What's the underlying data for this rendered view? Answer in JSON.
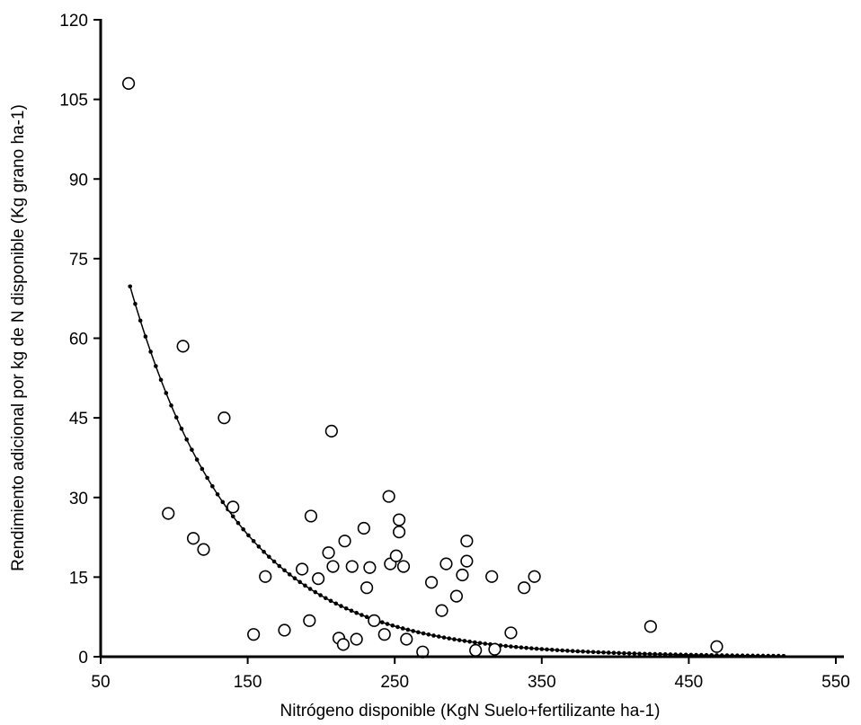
{
  "chart_data": {
    "type": "scatter",
    "title": "",
    "xlabel": "Nitrógeno disponible (KgN Suelo+fertilizante ha-1)",
    "ylabel": "Rendimiento adicional por kg de N disponible (Kg grano ha-1)",
    "xlim": [
      50,
      550
    ],
    "ylim": [
      0,
      120
    ],
    "xticks": [
      50,
      150,
      250,
      350,
      450,
      550
    ],
    "yticks": [
      0,
      15,
      30,
      45,
      60,
      75,
      90,
      105,
      120
    ],
    "grid": false,
    "legend": "none",
    "series": [
      {
        "kind": "scatter",
        "marker": "open-circle",
        "points": [
          [
            69,
            108
          ],
          [
            106,
            58.5
          ],
          [
            134,
            45
          ],
          [
            207,
            42.5
          ],
          [
            96,
            27
          ],
          [
            140,
            28.2
          ],
          [
            113,
            22.3
          ],
          [
            120,
            20.2
          ],
          [
            193,
            26.5
          ],
          [
            162,
            15.1
          ],
          [
            154,
            4.2
          ],
          [
            175,
            5
          ],
          [
            187,
            16.5
          ],
          [
            192,
            6.8
          ],
          [
            198,
            14.7
          ],
          [
            205,
            19.6
          ],
          [
            208,
            17
          ],
          [
            212,
            3.5
          ],
          [
            215,
            2.3
          ],
          [
            216,
            21.8
          ],
          [
            221,
            17
          ],
          [
            224,
            3.3
          ],
          [
            229,
            24.2
          ],
          [
            231,
            13
          ],
          [
            233,
            16.8
          ],
          [
            236,
            6.8
          ],
          [
            243,
            4.2
          ],
          [
            246,
            30.2
          ],
          [
            247,
            17.5
          ],
          [
            251,
            19
          ],
          [
            253,
            23.5
          ],
          [
            253,
            25.8
          ],
          [
            256,
            17
          ],
          [
            258,
            3.3
          ],
          [
            269,
            0.9
          ],
          [
            275,
            14
          ],
          [
            282,
            8.7
          ],
          [
            285,
            17.5
          ],
          [
            292,
            11.4
          ],
          [
            296,
            15.4
          ],
          [
            299,
            18
          ],
          [
            299,
            21.8
          ],
          [
            305,
            1.2
          ],
          [
            316,
            15.1
          ],
          [
            318,
            1.4
          ],
          [
            329,
            4.5
          ],
          [
            338,
            13
          ],
          [
            345,
            15.1
          ],
          [
            424,
            5.7
          ],
          [
            469,
            1.9
          ]
        ]
      },
      {
        "kind": "fitted-curve",
        "marker": "dot-line",
        "model": "exponential",
        "a": 184.1,
        "k": 0.01386,
        "x_start": 70,
        "x_end": 515
      }
    ]
  }
}
